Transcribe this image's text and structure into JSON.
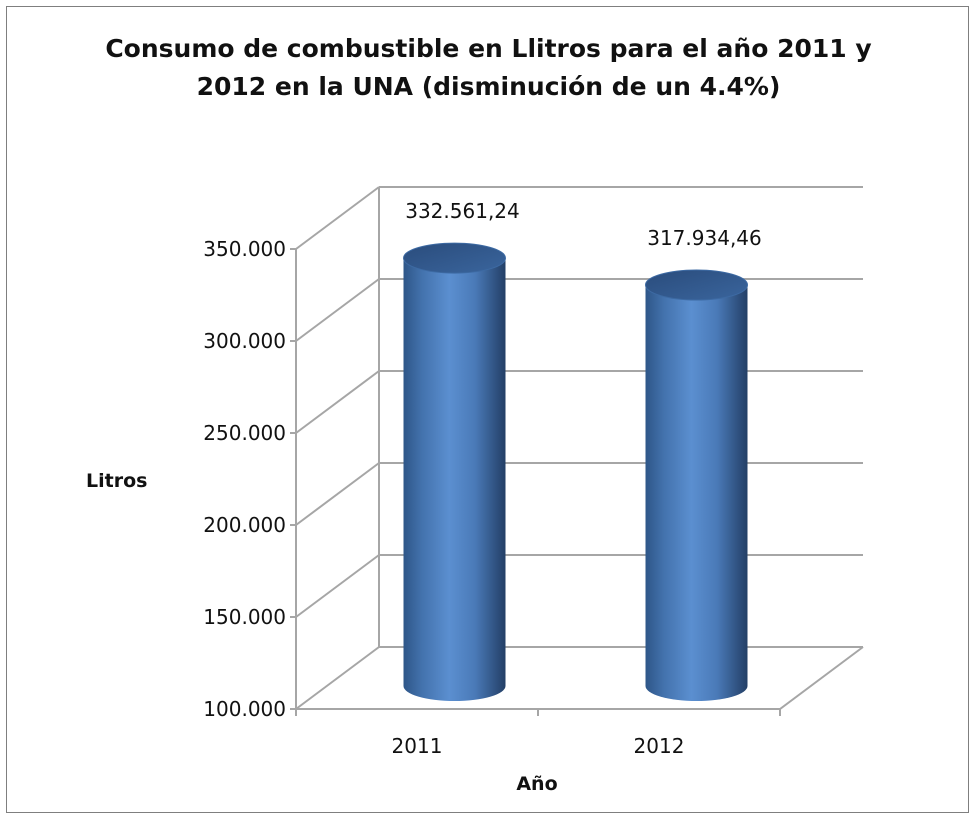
{
  "chart_data": {
    "type": "bar",
    "title_lines": [
      "Consumo de combustible en Llitros para el año 2011 y",
      "2012 en la UNA (disminución de un 4.4%)"
    ],
    "categories": [
      "2011",
      "2012"
    ],
    "values": [
      332561.24,
      317934.46
    ],
    "data_labels": [
      "332.561,24",
      "317.934,46"
    ],
    "xlabel": "Año",
    "ylabel": "Litros",
    "ylim": [
      100000,
      350000
    ],
    "y_ticks": [
      100000,
      150000,
      200000,
      250000,
      300000,
      350000
    ],
    "y_tick_labels": [
      "100.000",
      "150.000",
      "200.000",
      "250.000",
      "300.000",
      "350.000"
    ],
    "grid": true,
    "legend": "none",
    "bar_style": "3d-cylinder",
    "bar_color": "#4f81bd",
    "gridline_color": "#a6a6a6"
  }
}
